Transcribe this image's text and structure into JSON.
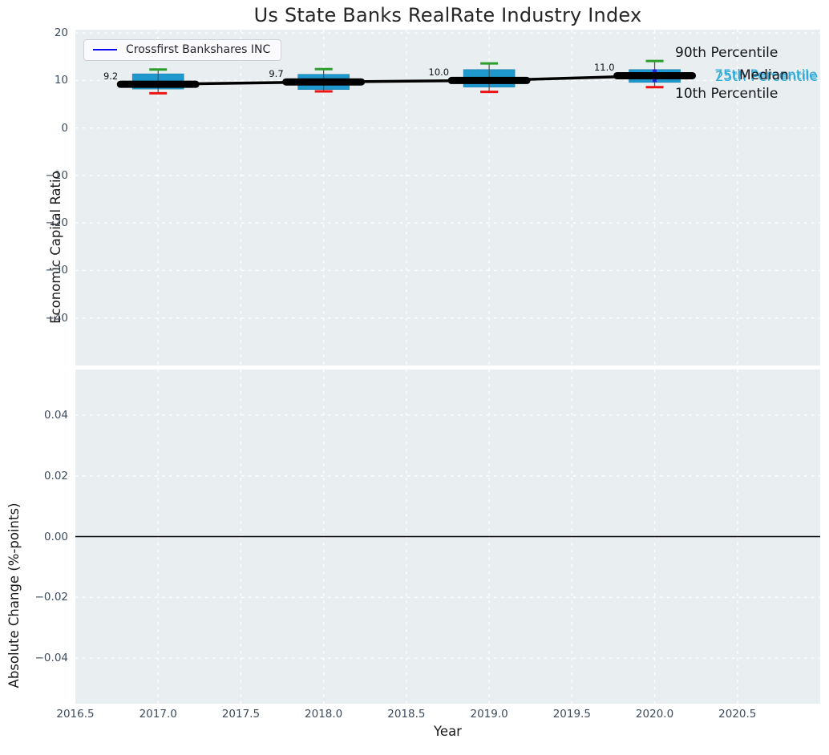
{
  "title": "Us State Banks RealRate Industry Index",
  "legend": {
    "label": "Crossfirst Bankshares INC"
  },
  "annotations": {
    "p90": "90th Percentile",
    "p75": "75th Percentile",
    "median": "Median",
    "p25": "25th Percentile",
    "p10": "10th Percentile"
  },
  "colors": {
    "box_fill": "#1f99cd",
    "box_edge": "#1781ad",
    "whisker": "#4d4d4d",
    "cap_high": "#2b9e2b",
    "cap_low": "#ef1212",
    "company_line": "#000000",
    "legend_line": "#0b0bf0",
    "annotation_cyan": "#30abd9",
    "plot_bg": "#e9eef0",
    "grid": "#ffffff",
    "zero_line": "#000000",
    "blue_marker": "#2222dd"
  },
  "chart_data": [
    {
      "type": "boxplot+line",
      "title": "Us State Banks RealRate Industry Index",
      "xlabel": "Year",
      "ylabel": "Economic Capital Ratio",
      "xlim": [
        2016.5,
        2021.0
      ],
      "ylim": [
        -50,
        20.7
      ],
      "xticks": [
        2016.5,
        2017.0,
        2017.5,
        2018.0,
        2018.5,
        2019.0,
        2019.5,
        2020.0,
        2020.5
      ],
      "xtick_labels": [
        "2016.5",
        "2017.0",
        "2017.5",
        "2018.0",
        "2018.5",
        "2019.0",
        "2019.5",
        "2020.0",
        "2020.5"
      ],
      "yticks": [
        20,
        10,
        0,
        -10,
        -20,
        -30,
        -40
      ],
      "ytick_labels": [
        "20",
        "10",
        "0",
        "−10",
        "−20",
        "−30",
        "−40"
      ],
      "grid": true,
      "legend_position": "upper left",
      "series": [
        {
          "name": "Crossfirst Bankshares INC",
          "x": [
            2017,
            2018,
            2019,
            2020
          ],
          "values": [
            9.2,
            9.7,
            10.0,
            11.0
          ]
        }
      ],
      "value_labels": [
        "9.2",
        "9.7",
        "10.0",
        "11.0"
      ],
      "boxes": [
        {
          "x": 2017,
          "p10": 7.3,
          "p25": 8.2,
          "p75": 11.4,
          "p90": 12.3
        },
        {
          "x": 2018,
          "p10": 7.7,
          "p25": 8.1,
          "p75": 11.3,
          "p90": 12.4
        },
        {
          "x": 2019,
          "p10": 7.6,
          "p25": 8.6,
          "p75": 12.3,
          "p90": 13.6
        },
        {
          "x": 2020,
          "p10": 8.6,
          "p25": 9.6,
          "p75": 12.3,
          "p90": 14.1
        }
      ]
    },
    {
      "type": "line",
      "xlabel": "Year",
      "ylabel": "Absolute Change (%-points)",
      "xlim": [
        2016.5,
        2021.0
      ],
      "ylim": [
        -0.055,
        0.055
      ],
      "yticks": [
        0.04,
        0.02,
        0.0,
        -0.02,
        -0.04
      ],
      "ytick_labels": [
        "0.04",
        "0.02",
        "0.00",
        "−0.02",
        "−0.04"
      ],
      "grid": true,
      "zero_line": 0.0
    }
  ]
}
